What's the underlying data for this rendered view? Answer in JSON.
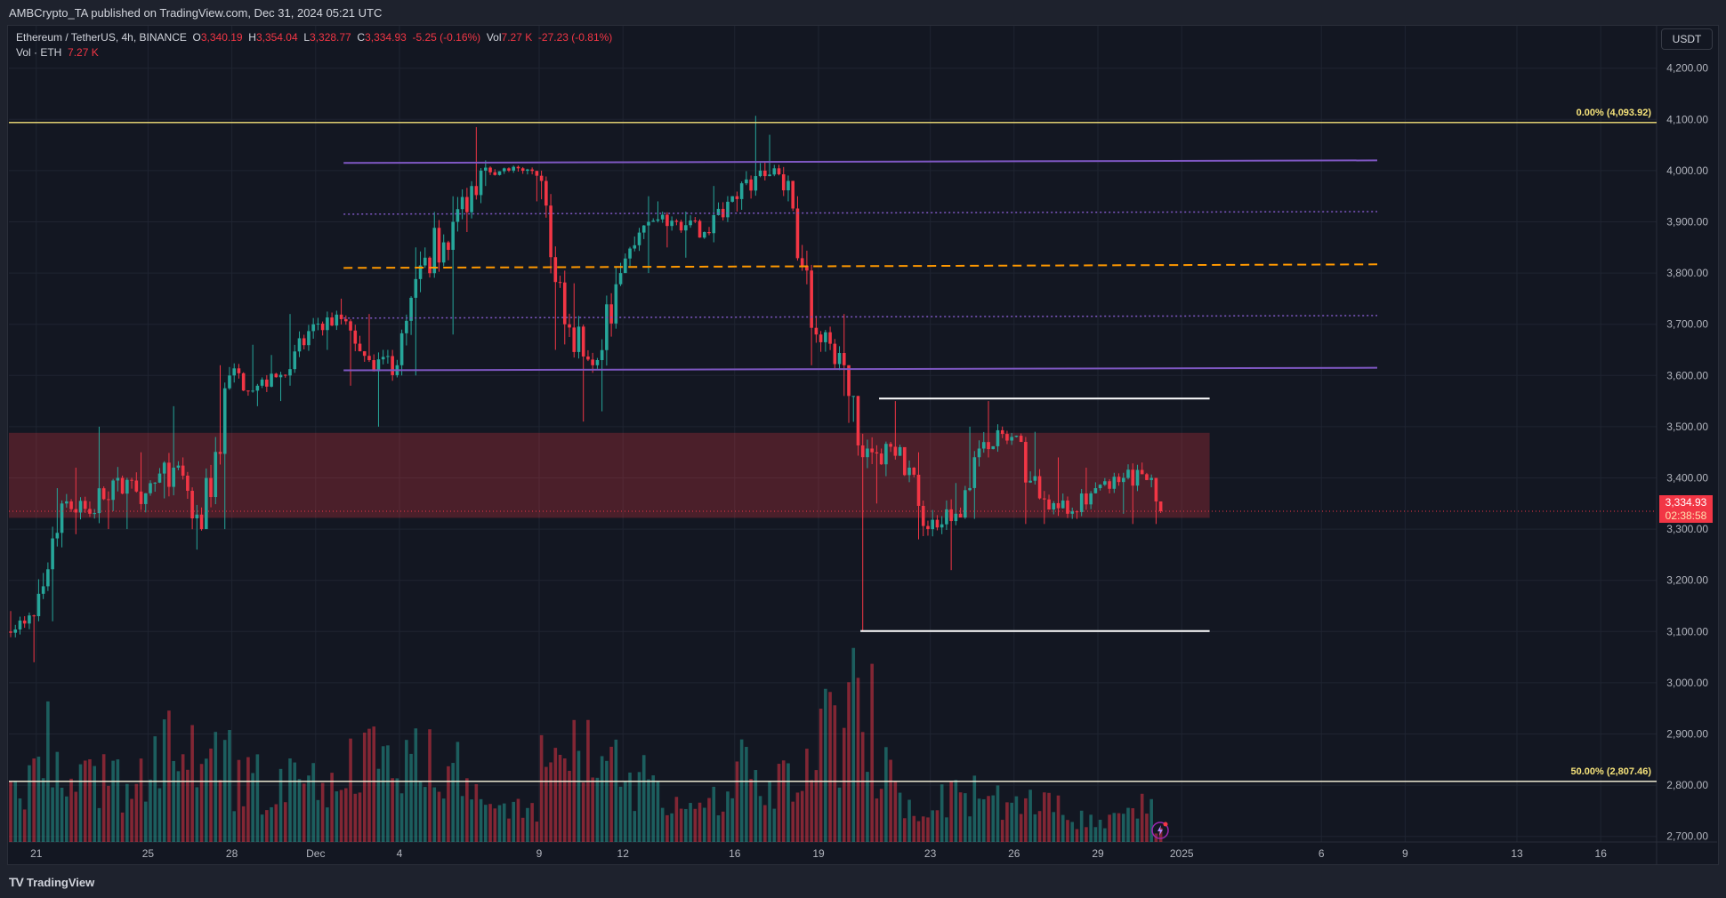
{
  "published": "AMBCrypto_TA published on TradingView.com, Dec 31, 2024 05:21 UTC",
  "legend": {
    "symbol": "Ethereum / TetherUS, 4h, BINANCE",
    "o_label": "O",
    "o": "3,340.19",
    "h_label": "H",
    "h": "3,354.04",
    "l_label": "L",
    "l": "3,328.77",
    "c_label": "C",
    "c": "3,334.93",
    "change": "-5.25 (-0.16%)",
    "vol_label": "Vol",
    "vol": "7.27 K",
    "vol_change": "-27.23 (-0.81%)",
    "vol_series": "Vol · ETH",
    "vol_series_value": "7.27 K"
  },
  "currency_button": "USDT",
  "last_price": {
    "price": "3,334.93",
    "countdown": "02:38:58"
  },
  "footer": {
    "logo": "TV",
    "brand": "TradingView"
  },
  "colors": {
    "up": "#26a69a",
    "down": "#f23645",
    "background": "#131722",
    "fib": "#f5e27a",
    "channel": "#7e57c2",
    "mid": "#ff9800",
    "zone": "#f23645",
    "range": "#ffffff"
  },
  "icons": {
    "alert": "lightning-icon"
  },
  "chart_data": {
    "type": "candlestick",
    "interval": "4h",
    "start_date": "2024-11-20",
    "y_axis": {
      "min": 2690,
      "max": 4250,
      "ticks": [
        "4,200.00",
        "4,100.00",
        "4,000.00",
        "3,900.00",
        "3,800.00",
        "3,700.00",
        "3,600.00",
        "3,500.00",
        "3,400.00",
        "3,300.00",
        "3,200.00",
        "3,100.00",
        "3,000.00",
        "2,900.00",
        "2,800.00",
        "2,700.00"
      ]
    },
    "x_axis": {
      "labels": [
        {
          "date": "2024-11-21",
          "text": "21"
        },
        {
          "date": "2024-11-25",
          "text": "25"
        },
        {
          "date": "2024-11-28",
          "text": "28"
        },
        {
          "date": "2024-12-01",
          "text": "Dec"
        },
        {
          "date": "2024-12-04",
          "text": "4"
        },
        {
          "date": "2024-12-09",
          "text": "9"
        },
        {
          "date": "2024-12-12",
          "text": "12"
        },
        {
          "date": "2024-12-16",
          "text": "16"
        },
        {
          "date": "2024-12-19",
          "text": "19"
        },
        {
          "date": "2024-12-23",
          "text": "23"
        },
        {
          "date": "2024-12-26",
          "text": "26"
        },
        {
          "date": "2024-12-29",
          "text": "29"
        },
        {
          "date": "2025-01-01",
          "text": "2025"
        },
        {
          "date": "2025-01-06",
          "text": "6"
        },
        {
          "date": "2025-01-09",
          "text": "9"
        },
        {
          "date": "2025-01-13",
          "text": "13"
        },
        {
          "date": "2025-01-16",
          "text": "16"
        }
      ]
    },
    "grid": true,
    "daily": {
      "columns": [
        "date",
        "close",
        "high",
        "low",
        "volume_k"
      ],
      "open_first": 3100,
      "rows": [
        [
          "2024-11-20",
          3130,
          3140,
          3040,
          30
        ],
        [
          "2024-11-21",
          3350,
          3380,
          3120,
          50
        ],
        [
          "2024-11-22",
          3330,
          3420,
          3290,
          35
        ],
        [
          "2024-11-23",
          3400,
          3500,
          3300,
          30
        ],
        [
          "2024-11-24",
          3370,
          3450,
          3300,
          30
        ],
        [
          "2024-11-25",
          3420,
          3540,
          3360,
          45
        ],
        [
          "2024-11-26",
          3300,
          3440,
          3260,
          40
        ],
        [
          "2024-11-27",
          3600,
          3620,
          3300,
          45
        ],
        [
          "2024-11-28",
          3580,
          3660,
          3540,
          30
        ],
        [
          "2024-11-29",
          3600,
          3640,
          3550,
          25
        ],
        [
          "2024-11-30",
          3700,
          3720,
          3580,
          30
        ],
        [
          "2024-12-01",
          3710,
          3750,
          3650,
          25
        ],
        [
          "2024-12-02",
          3630,
          3720,
          3580,
          40
        ],
        [
          "2024-12-03",
          3620,
          3650,
          3500,
          45
        ],
        [
          "2024-12-04",
          3830,
          3850,
          3600,
          45
        ],
        [
          "2024-12-05",
          3900,
          3950,
          3680,
          40
        ],
        [
          "2024-12-06",
          4000,
          4085,
          3880,
          35
        ],
        [
          "2024-12-07",
          4000,
          4020,
          3970,
          15
        ],
        [
          "2024-12-08",
          3990,
          4010,
          3940,
          15
        ],
        [
          "2024-12-09",
          3700,
          4000,
          3650,
          40
        ],
        [
          "2024-12-10",
          3620,
          3780,
          3510,
          55
        ],
        [
          "2024-12-11",
          3800,
          3820,
          3530,
          35
        ],
        [
          "2024-12-12",
          3900,
          3950,
          3800,
          30
        ],
        [
          "2024-12-13",
          3900,
          3940,
          3850,
          25
        ],
        [
          "2024-12-14",
          3880,
          3920,
          3830,
          15
        ],
        [
          "2024-12-15",
          3950,
          3970,
          3860,
          20
        ],
        [
          "2024-12-16",
          4000,
          4107,
          3920,
          35
        ],
        [
          "2024-12-17",
          3980,
          4070,
          3940,
          30
        ],
        [
          "2024-12-18",
          3680,
          3950,
          3620,
          35
        ],
        [
          "2024-12-19",
          3620,
          3720,
          3560,
          55
        ],
        [
          "2024-12-20",
          3450,
          3560,
          3100,
          70
        ],
        [
          "2024-12-21",
          3460,
          3550,
          3350,
          35
        ],
        [
          "2024-12-22",
          3300,
          3450,
          3280,
          20
        ],
        [
          "2024-12-23",
          3330,
          3390,
          3220,
          25
        ],
        [
          "2024-12-24",
          3470,
          3500,
          3320,
          25
        ],
        [
          "2024-12-25",
          3480,
          3550,
          3440,
          20
        ],
        [
          "2024-12-26",
          3360,
          3490,
          3310,
          20
        ],
        [
          "2024-12-27",
          3330,
          3440,
          3310,
          18
        ],
        [
          "2024-12-28",
          3380,
          3420,
          3320,
          12
        ],
        [
          "2024-12-29",
          3400,
          3410,
          3330,
          12
        ],
        [
          "2024-12-30",
          3400,
          3430,
          3310,
          20
        ],
        [
          "2024-12-31",
          3334.93,
          3354.04,
          3310,
          7.27
        ]
      ]
    },
    "drawings": {
      "fib_levels": [
        {
          "label": "0.00% (4,093.92)",
          "price": 4093.92
        },
        {
          "label": "50.00% (2,807.46)",
          "price": 2807.46
        }
      ],
      "channel_lines": [
        {
          "style": "solid",
          "from": [
            "2024-12-02",
            4015
          ],
          "to": [
            "2025-01-08",
            4020
          ]
        },
        {
          "style": "dotted",
          "from": [
            "2024-12-02",
            3915
          ],
          "to": [
            "2025-01-08",
            3920
          ]
        },
        {
          "style": "dashed-mid",
          "from": [
            "2024-12-02",
            3810
          ],
          "to": [
            "2025-01-08",
            3817
          ]
        },
        {
          "style": "dotted",
          "from": [
            "2024-12-02",
            3712
          ],
          "to": [
            "2025-01-08",
            3717
          ]
        },
        {
          "style": "solid",
          "from": [
            "2024-12-02",
            3610
          ],
          "to": [
            "2025-01-08",
            3615
          ]
        }
      ],
      "zone": {
        "from": "2024-11-20",
        "to": "2025-01-02",
        "top": 3488,
        "bottom": 3322
      },
      "range_lines": [
        {
          "from": [
            "2024-12-21T04",
            3555
          ],
          "to": [
            "2025-01-02",
            3555
          ]
        },
        {
          "from": [
            "2024-12-20T12",
            3101
          ],
          "to": [
            "2025-01-02",
            3101
          ]
        }
      ]
    }
  }
}
